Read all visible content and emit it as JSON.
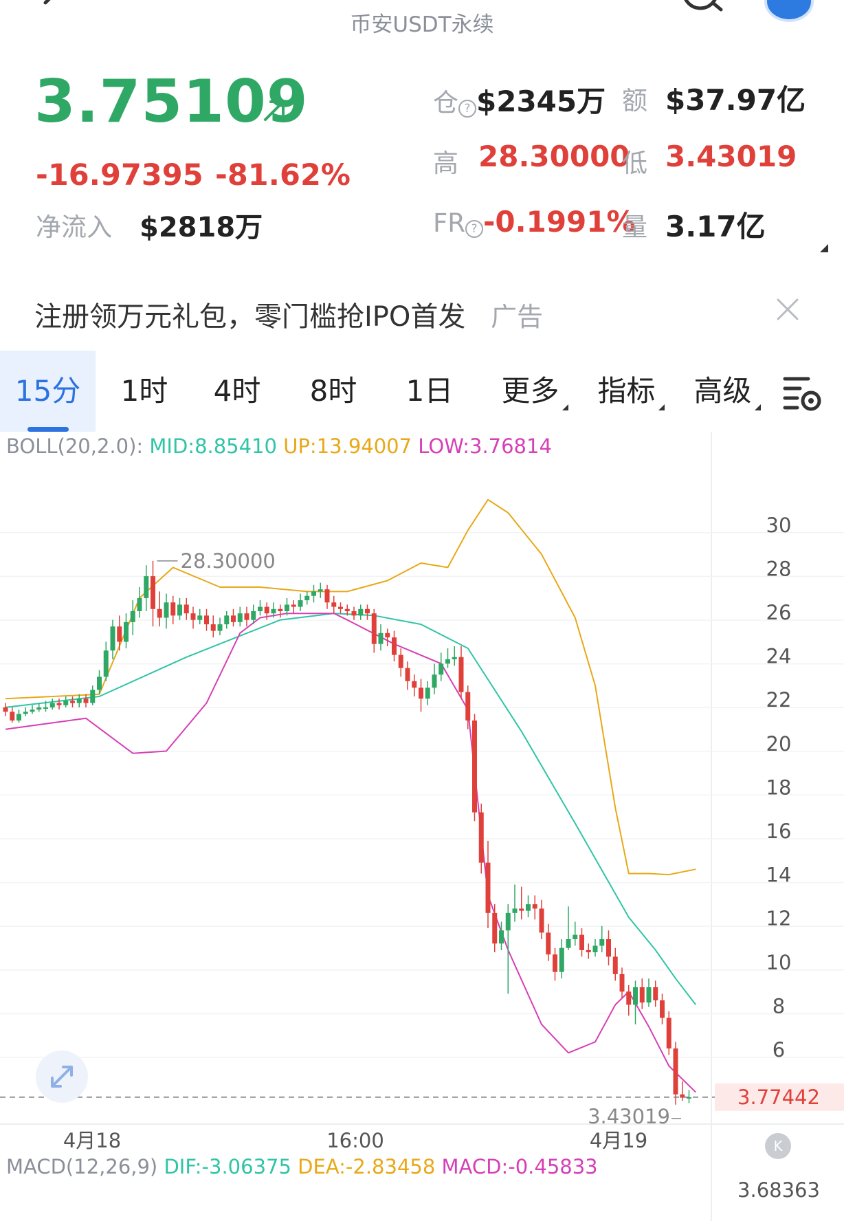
{
  "header": {
    "title": "币安USDT永续"
  },
  "ticker": {
    "price": "3.75109",
    "change": "-16.97395",
    "change_pct": "-81.62%",
    "net_inflow_label": "净流入",
    "net_inflow_value": "$2818万",
    "open_interest_label": "仓",
    "open_interest_value": "$2345万",
    "turnover_label": "额",
    "turnover_value": "$37.97亿",
    "high_label": "高",
    "high_value": "28.30000",
    "low_label": "低",
    "low_value": "3.43019",
    "fr_label": "FR",
    "fr_value": "-0.1991%",
    "volume_label": "量",
    "volume_value": "3.17亿",
    "colors": {
      "up": "#2fa865",
      "down": "#e0403a"
    }
  },
  "banner": {
    "text": "注册领万元礼包，零门槛抢IPO首发",
    "ad_label": "广告"
  },
  "tabs": {
    "items": [
      {
        "label": "15分",
        "active": true
      },
      {
        "label": "1时"
      },
      {
        "label": "4时"
      },
      {
        "label": "8时"
      },
      {
        "label": "1日"
      },
      {
        "label": "更多"
      },
      {
        "label": "指标"
      },
      {
        "label": "高级"
      }
    ]
  },
  "indicators": {
    "boll_name": "BOLL(20,2.0):",
    "boll_mid": "MID:8.85410",
    "boll_up": "UP:13.94007",
    "boll_low": "LOW:3.76814",
    "macd_name": "MACD(12,26,9)",
    "macd_dif": "DIF:-3.06375",
    "macd_dea": "DEA:-2.83458",
    "macd_val": "MACD:-0.45833",
    "colors": {
      "mid": "#2fc4a6",
      "up": "#e8a817",
      "low": "#d63fb5"
    }
  },
  "chart_data": {
    "type": "candlestick",
    "ylim": [
      2.7,
      33.2
    ],
    "y_ticks": [
      "30",
      "28",
      "26",
      "24",
      "22",
      "20",
      "18",
      "16",
      "14",
      "12",
      "10",
      "8",
      "6"
    ],
    "x_ticks": [
      "4月18",
      "16:00",
      "4月19"
    ],
    "high_annotation": "28.30000",
    "low_annotation": "3.43019",
    "current_price_label": "3.77442",
    "current_price": 3.77442,
    "macd_axis_label": "3.68363",
    "candles": [
      [
        21.6,
        21.4,
        21.8,
        21.2
      ],
      [
        21.4,
        21.0,
        21.6,
        20.9
      ],
      [
        21.0,
        21.3,
        21.5,
        20.9
      ],
      [
        21.3,
        21.4,
        21.6,
        21.2
      ],
      [
        21.4,
        21.5,
        21.7,
        21.3
      ],
      [
        21.5,
        21.6,
        21.8,
        21.4
      ],
      [
        21.6,
        21.6,
        21.9,
        21.4
      ],
      [
        21.6,
        21.8,
        22.0,
        21.5
      ],
      [
        21.8,
        21.7,
        22.0,
        21.5
      ],
      [
        21.7,
        21.9,
        22.1,
        21.6
      ],
      [
        21.9,
        21.8,
        22.1,
        21.6
      ],
      [
        21.8,
        22.0,
        22.2,
        21.6
      ],
      [
        22.0,
        21.8,
        22.2,
        21.6
      ],
      [
        21.8,
        22.4,
        22.6,
        21.7
      ],
      [
        22.4,
        23.0,
        23.3,
        22.2
      ],
      [
        23.0,
        24.2,
        24.6,
        22.8
      ],
      [
        24.2,
        25.3,
        25.6,
        23.8
      ],
      [
        25.3,
        24.6,
        25.8,
        24.2
      ],
      [
        24.6,
        25.5,
        25.9,
        24.3
      ],
      [
        25.5,
        26.0,
        26.5,
        24.9
      ],
      [
        26.0,
        26.6,
        27.1,
        25.7
      ],
      [
        26.6,
        27.6,
        28.1,
        26.0
      ],
      [
        27.6,
        26.1,
        28.3,
        25.3
      ],
      [
        26.1,
        25.7,
        26.9,
        25.3
      ],
      [
        25.7,
        26.4,
        26.8,
        25.2
      ],
      [
        26.4,
        25.8,
        26.7,
        25.4
      ],
      [
        25.8,
        26.3,
        26.6,
        25.6
      ],
      [
        26.3,
        25.9,
        26.6,
        25.6
      ],
      [
        25.9,
        25.6,
        26.2,
        25.2
      ],
      [
        25.6,
        25.8,
        26.1,
        25.4
      ],
      [
        25.8,
        25.4,
        26.1,
        25.1
      ],
      [
        25.4,
        25.1,
        25.8,
        24.8
      ],
      [
        25.1,
        25.4,
        25.7,
        24.9
      ],
      [
        25.4,
        25.8,
        26.0,
        25.2
      ],
      [
        25.8,
        25.5,
        26.1,
        25.3
      ],
      [
        25.5,
        25.9,
        26.2,
        25.3
      ],
      [
        25.9,
        25.6,
        26.2,
        25.3
      ],
      [
        25.6,
        26.0,
        26.3,
        25.4
      ],
      [
        26.0,
        26.2,
        26.5,
        25.8
      ],
      [
        26.2,
        25.9,
        26.4,
        25.6
      ],
      [
        25.9,
        26.1,
        26.4,
        25.7
      ],
      [
        26.1,
        26.0,
        26.3,
        25.7
      ],
      [
        26.0,
        26.3,
        26.6,
        25.8
      ],
      [
        26.3,
        26.2,
        26.5,
        25.9
      ],
      [
        26.2,
        26.5,
        26.8,
        26.0
      ],
      [
        26.5,
        26.7,
        26.9,
        26.3
      ],
      [
        26.7,
        26.9,
        27.2,
        26.4
      ],
      [
        26.9,
        27.0,
        27.3,
        26.6
      ],
      [
        27.0,
        26.4,
        27.2,
        26.1
      ],
      [
        26.4,
        26.2,
        26.7,
        25.9
      ],
      [
        26.2,
        26.1,
        26.4,
        25.9
      ],
      [
        26.1,
        26.0,
        26.3,
        25.8
      ],
      [
        26.0,
        25.8,
        26.2,
        25.6
      ],
      [
        25.8,
        26.1,
        26.3,
        25.6
      ],
      [
        26.1,
        25.9,
        26.3,
        25.6
      ],
      [
        25.9,
        24.5,
        26.1,
        24.1
      ],
      [
        24.5,
        25.0,
        25.4,
        24.2
      ],
      [
        25.0,
        24.8,
        25.2,
        24.4
      ],
      [
        24.8,
        24.0,
        25.1,
        23.7
      ],
      [
        24.0,
        23.4,
        24.3,
        23.0
      ],
      [
        23.4,
        22.8,
        23.7,
        22.4
      ],
      [
        22.8,
        22.5,
        23.1,
        22.1
      ],
      [
        22.5,
        22.0,
        22.9,
        21.4
      ],
      [
        22.0,
        22.5,
        22.8,
        21.7
      ],
      [
        22.5,
        23.1,
        23.6,
        22.2
      ],
      [
        23.1,
        23.6,
        24.1,
        22.8
      ],
      [
        23.6,
        23.8,
        24.3,
        23.4
      ],
      [
        23.8,
        23.9,
        24.4,
        23.5
      ],
      [
        23.9,
        22.3,
        24.4,
        22.0
      ],
      [
        22.3,
        21.0,
        22.6,
        20.6
      ],
      [
        21.0,
        16.8,
        21.3,
        16.4
      ],
      [
        16.8,
        14.5,
        17.2,
        14.0
      ],
      [
        14.5,
        12.2,
        15.5,
        11.5
      ],
      [
        12.2,
        10.8,
        12.6,
        10.4
      ],
      [
        10.8,
        11.4,
        11.8,
        10.5
      ],
      [
        11.4,
        12.2,
        12.6,
        8.5
      ],
      [
        12.2,
        12.4,
        13.5,
        11.8
      ],
      [
        12.4,
        12.3,
        13.4,
        11.9
      ],
      [
        12.3,
        12.6,
        13.0,
        12.0
      ],
      [
        12.6,
        12.4,
        13.0,
        11.9
      ],
      [
        12.4,
        11.3,
        12.8,
        11.0
      ],
      [
        11.3,
        10.3,
        11.7,
        10.0
      ],
      [
        10.3,
        9.5,
        10.6,
        9.1
      ],
      [
        9.5,
        10.6,
        11.0,
        9.2
      ],
      [
        10.6,
        11.0,
        12.5,
        10.5
      ],
      [
        11.0,
        11.2,
        11.8,
        10.7
      ],
      [
        11.2,
        10.5,
        11.5,
        10.2
      ],
      [
        10.5,
        10.4,
        10.8,
        10.1
      ],
      [
        10.4,
        10.7,
        11.0,
        10.2
      ],
      [
        10.7,
        11.0,
        11.6,
        10.4
      ],
      [
        11.0,
        10.2,
        11.4,
        9.8
      ],
      [
        10.2,
        9.4,
        10.6,
        9.1
      ],
      [
        9.4,
        8.6,
        9.7,
        8.3
      ],
      [
        8.6,
        8.0,
        8.9,
        7.5
      ],
      [
        8.0,
        8.8,
        9.1,
        7.1
      ],
      [
        8.8,
        8.1,
        9.2,
        7.8
      ],
      [
        8.1,
        8.8,
        9.2,
        7.9
      ],
      [
        8.8,
        8.2,
        9.1,
        7.9
      ],
      [
        8.2,
        7.4,
        8.5,
        7.1
      ],
      [
        7.4,
        6.0,
        7.7,
        5.7
      ],
      [
        6.0,
        3.9,
        6.3,
        3.43
      ],
      [
        3.9,
        3.75,
        4.5,
        3.6
      ],
      [
        3.75,
        3.77,
        4.1,
        3.5
      ]
    ],
    "boll_mid": [
      [
        0,
        21.6
      ],
      [
        14,
        22.1
      ],
      [
        27,
        23.9
      ],
      [
        41,
        25.6
      ],
      [
        49,
        25.9
      ],
      [
        55,
        25.8
      ],
      [
        62,
        25.4
      ],
      [
        69,
        24.3
      ],
      [
        77,
        20.5
      ],
      [
        85,
        16.3
      ],
      [
        93,
        12.0
      ],
      [
        97,
        10.5
      ],
      [
        100,
        9.2
      ],
      [
        103,
        8.0
      ]
    ],
    "boll_up": [
      [
        0,
        22.0
      ],
      [
        14,
        22.2
      ],
      [
        20,
        26.6
      ],
      [
        25,
        28.0
      ],
      [
        32,
        27.1
      ],
      [
        38,
        27.1
      ],
      [
        45,
        26.9
      ],
      [
        51,
        26.9
      ],
      [
        57,
        27.4
      ],
      [
        62,
        28.2
      ],
      [
        66,
        28.0
      ],
      [
        69,
        29.7
      ],
      [
        72,
        31.1
      ],
      [
        75,
        30.5
      ],
      [
        80,
        28.6
      ],
      [
        85,
        25.7
      ],
      [
        88,
        22.6
      ],
      [
        91,
        17.0
      ],
      [
        93,
        14.0
      ],
      [
        96,
        14.0
      ],
      [
        99,
        13.95
      ],
      [
        103,
        14.2
      ]
    ],
    "boll_low": [
      [
        0,
        20.6
      ],
      [
        12,
        21.1
      ],
      [
        19,
        19.5
      ],
      [
        24,
        19.6
      ],
      [
        30,
        21.8
      ],
      [
        35,
        25.0
      ],
      [
        38,
        25.7
      ],
      [
        42,
        25.9
      ],
      [
        49,
        25.9
      ],
      [
        51,
        25.6
      ],
      [
        58,
        24.5
      ],
      [
        65,
        23.6
      ],
      [
        69,
        21.5
      ],
      [
        72,
        13.0
      ],
      [
        75,
        10.5
      ],
      [
        80,
        7.1
      ],
      [
        84,
        5.8
      ],
      [
        88,
        6.3
      ],
      [
        91,
        8.0
      ],
      [
        93,
        8.6
      ],
      [
        96,
        7.0
      ],
      [
        99,
        5.2
      ],
      [
        103,
        4.0
      ]
    ]
  }
}
